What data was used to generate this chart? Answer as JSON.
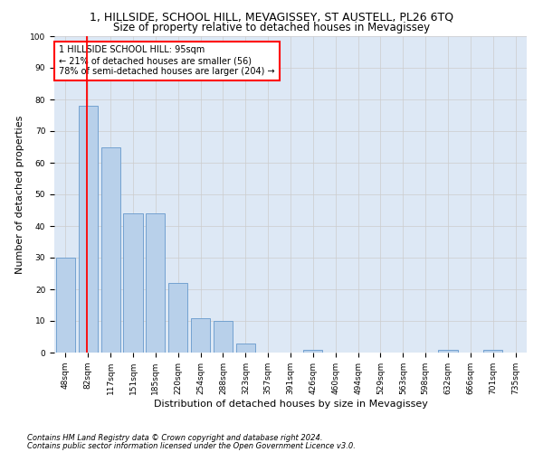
{
  "title_line1": "1, HILLSIDE, SCHOOL HILL, MEVAGISSEY, ST AUSTELL, PL26 6TQ",
  "title_line2": "Size of property relative to detached houses in Mevagissey",
  "xlabel": "Distribution of detached houses by size in Mevagissey",
  "ylabel": "Number of detached properties",
  "bar_labels": [
    "48sqm",
    "82sqm",
    "117sqm",
    "151sqm",
    "185sqm",
    "220sqm",
    "254sqm",
    "288sqm",
    "323sqm",
    "357sqm",
    "391sqm",
    "426sqm",
    "460sqm",
    "494sqm",
    "529sqm",
    "563sqm",
    "598sqm",
    "632sqm",
    "666sqm",
    "701sqm",
    "735sqm"
  ],
  "bar_values": [
    30,
    78,
    65,
    44,
    44,
    22,
    11,
    10,
    3,
    0,
    0,
    1,
    0,
    0,
    0,
    0,
    0,
    1,
    0,
    1,
    0
  ],
  "bar_color": "#b8d0ea",
  "bar_edge_color": "#6699cc",
  "vline_x": 1,
  "annotation_text_line1": "1 HILLSIDE SCHOOL HILL: 95sqm",
  "annotation_text_line2": "← 21% of detached houses are smaller (56)",
  "annotation_text_line3": "78% of semi-detached houses are larger (204) →",
  "annotation_box_color": "white",
  "annotation_border_color": "red",
  "vline_color": "red",
  "grid_color": "#cccccc",
  "bg_axes_color": "#dde8f5",
  "background_color": "white",
  "ylim": [
    0,
    100
  ],
  "yticks": [
    0,
    10,
    20,
    30,
    40,
    50,
    60,
    70,
    80,
    90,
    100
  ],
  "footnote_line1": "Contains HM Land Registry data © Crown copyright and database right 2024.",
  "footnote_line2": "Contains public sector information licensed under the Open Government Licence v3.0.",
  "title1_fontsize": 9,
  "title2_fontsize": 8.5,
  "xlabel_fontsize": 8,
  "ylabel_fontsize": 8,
  "tick_fontsize": 6.5,
  "annotation_fontsize": 7,
  "footnote_fontsize": 6
}
